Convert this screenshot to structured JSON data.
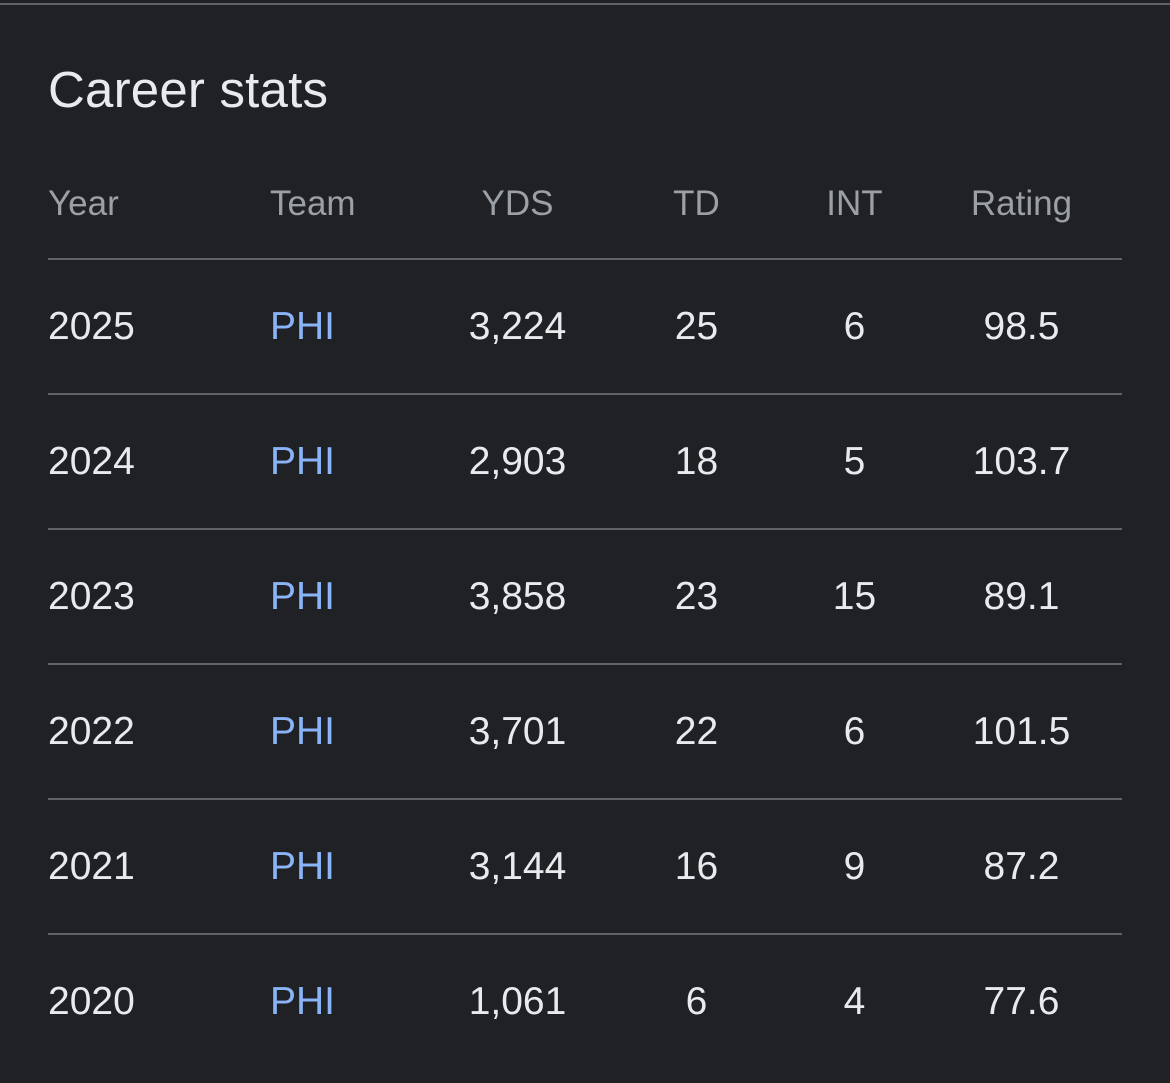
{
  "title": "Career stats",
  "columns": {
    "year": "Year",
    "team": "Team",
    "yds": "YDS",
    "td": "TD",
    "int": "INT",
    "rating": "Rating"
  },
  "rows": [
    {
      "year": "2025",
      "team": "PHI",
      "yds": "3,224",
      "td": "25",
      "int": "6",
      "rating": "98.5"
    },
    {
      "year": "2024",
      "team": "PHI",
      "yds": "2,903",
      "td": "18",
      "int": "5",
      "rating": "103.7"
    },
    {
      "year": "2023",
      "team": "PHI",
      "yds": "3,858",
      "td": "23",
      "int": "15",
      "rating": "89.1"
    },
    {
      "year": "2022",
      "team": "PHI",
      "yds": "3,701",
      "td": "22",
      "int": "6",
      "rating": "101.5"
    },
    {
      "year": "2021",
      "team": "PHI",
      "yds": "3,144",
      "td": "16",
      "int": "9",
      "rating": "87.2"
    },
    {
      "year": "2020",
      "team": "PHI",
      "yds": "1,061",
      "td": "6",
      "int": "4",
      "rating": "77.6"
    }
  ],
  "colors": {
    "background": "#202124",
    "text": "#e8eaed",
    "header_text": "#9aa0a6",
    "link": "#8ab4f8",
    "divider": "#5f6368"
  }
}
